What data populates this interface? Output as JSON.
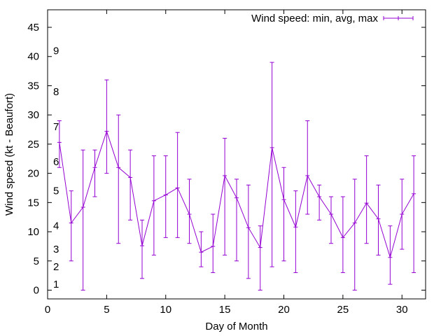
{
  "chart_data": {
    "type": "line",
    "subtype": "errorbars",
    "xlabel": "Day of Month",
    "ylabel": "Wind speed (kt - Beaufort)",
    "xlim": [
      0,
      32
    ],
    "ylim": [
      -1.5,
      48
    ],
    "x_ticks": [
      "0",
      "5",
      "10",
      "15",
      "20",
      "25",
      "30"
    ],
    "y_ticks": [
      "0",
      "5",
      "10",
      "15",
      "20",
      "25",
      "30",
      "35",
      "40",
      "45"
    ],
    "x_tick_values": [
      0,
      5,
      10,
      15,
      20,
      25,
      30
    ],
    "y_tick_values": [
      0,
      5,
      10,
      15,
      20,
      25,
      30,
      35,
      40,
      45
    ],
    "beaufort_labels": [
      {
        "label": "1",
        "y": 1
      },
      {
        "label": "2",
        "y": 4
      },
      {
        "label": "3",
        "y": 7
      },
      {
        "label": "4",
        "y": 11
      },
      {
        "label": "5",
        "y": 17
      },
      {
        "label": "6",
        "y": 22
      },
      {
        "label": "7",
        "y": 28
      },
      {
        "label": "8",
        "y": 34
      },
      {
        "label": "9",
        "y": 41
      }
    ],
    "grid": false,
    "legend_position": "top-right",
    "series": [
      {
        "name": "Wind speed: min, avg, max",
        "color": "#9400d3",
        "points": [
          {
            "x": 1,
            "min": 21,
            "avg": 25.3,
            "max": 29
          },
          {
            "x": 2,
            "min": 5,
            "avg": 11.5,
            "max": 17
          },
          {
            "x": 3,
            "min": 0,
            "avg": 14.2,
            "max": 24
          },
          {
            "x": 4,
            "min": 16,
            "avg": 21,
            "max": 24
          },
          {
            "x": 5,
            "min": 20,
            "avg": 27.2,
            "max": 36
          },
          {
            "x": 6,
            "min": 8,
            "avg": 21,
            "max": 30
          },
          {
            "x": 7,
            "min": 12,
            "avg": 19.3,
            "max": 24
          },
          {
            "x": 8,
            "min": 2,
            "avg": 7.6,
            "max": 12
          },
          {
            "x": 9,
            "min": 6,
            "avg": 15.3,
            "max": 23
          },
          {
            "x": 10,
            "min": 9,
            "avg": 16.3,
            "max": 23
          },
          {
            "x": 11,
            "min": 9,
            "avg": 17.5,
            "max": 27
          },
          {
            "x": 12,
            "min": 8,
            "avg": 13,
            "max": 19
          },
          {
            "x": 13,
            "min": 4,
            "avg": 6.5,
            "max": 10
          },
          {
            "x": 14,
            "min": 3,
            "avg": 7.5,
            "max": 13
          },
          {
            "x": 15,
            "min": 6,
            "avg": 19.6,
            "max": 26
          },
          {
            "x": 16,
            "min": 5,
            "avg": 15.8,
            "max": 19
          },
          {
            "x": 17,
            "min": 2,
            "avg": 10.7,
            "max": 18
          },
          {
            "x": 18,
            "min": 0,
            "avg": 7.3,
            "max": 11
          },
          {
            "x": 19,
            "min": 4,
            "avg": 24.4,
            "max": 39
          },
          {
            "x": 20,
            "min": 5,
            "avg": 15.5,
            "max": 21
          },
          {
            "x": 21,
            "min": 3,
            "avg": 10.8,
            "max": 17
          },
          {
            "x": 22,
            "min": 13,
            "avg": 19.6,
            "max": 29
          },
          {
            "x": 23,
            "min": 12,
            "avg": 16,
            "max": 18
          },
          {
            "x": 24,
            "min": 8,
            "avg": 13,
            "max": 16
          },
          {
            "x": 25,
            "min": 3,
            "avg": 9,
            "max": 16
          },
          {
            "x": 26,
            "min": 0,
            "avg": 11.5,
            "max": 19
          },
          {
            "x": 27,
            "min": 8,
            "avg": 14.9,
            "max": 23
          },
          {
            "x": 28,
            "min": 6,
            "avg": 12.2,
            "max": 18
          },
          {
            "x": 29,
            "min": 1,
            "avg": 5.6,
            "max": 11
          },
          {
            "x": 30,
            "min": 7,
            "avg": 13,
            "max": 19
          },
          {
            "x": 31,
            "min": 3,
            "avg": 16.5,
            "max": 23
          }
        ]
      }
    ]
  }
}
